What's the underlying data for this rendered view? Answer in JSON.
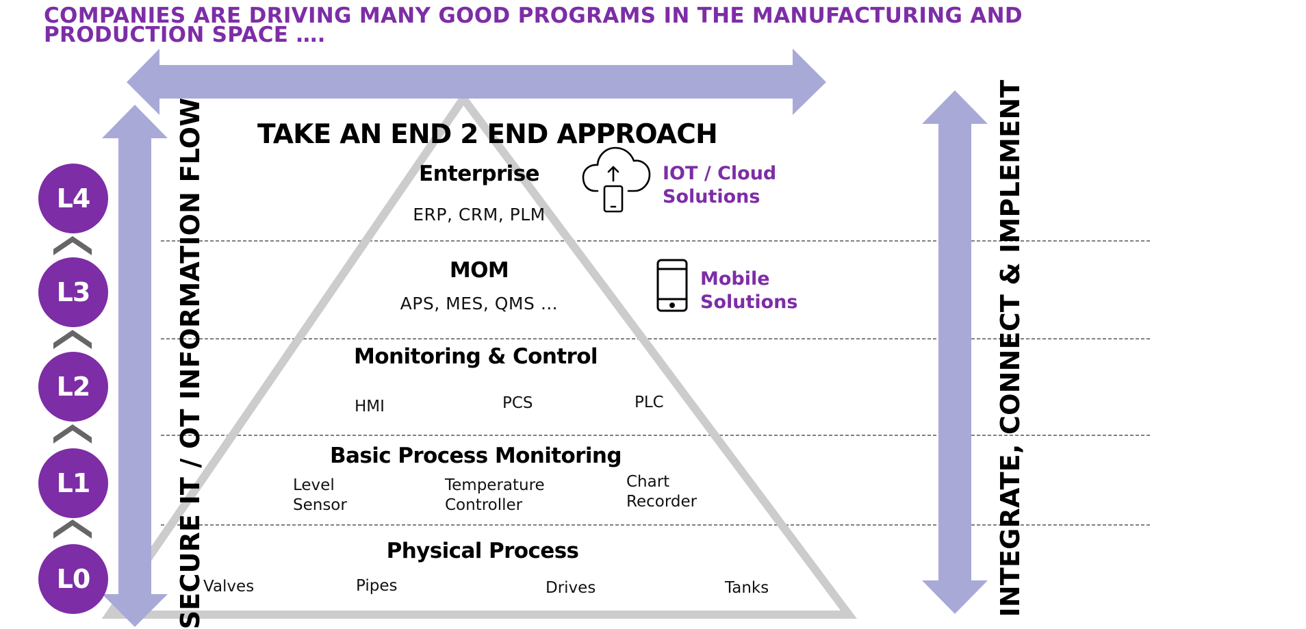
{
  "heading": "COMPANIES ARE DRIVING MANY GOOD PROGRAMS IN THE MANUFACTURING AND PRODUCTION SPACE ….",
  "approach_title": "TAKE AN END 2 END APPROACH",
  "left_flow_label": "SECURE IT / OT INFORMATION FLOW",
  "right_flow_label": "INTEGRATE, CONNECT & IMPLEMENT",
  "badges": [
    "L4",
    "L3",
    "L2",
    "L1",
    "L0"
  ],
  "levels": {
    "enterprise": {
      "title": "Enterprise",
      "subtitle": "ERP, CRM, PLM"
    },
    "mom": {
      "title": "MOM",
      "subtitle": "APS, MES, QMS …"
    },
    "monitoring": {
      "title": "Monitoring & Control",
      "items": [
        "HMI",
        "PCS",
        "PLC"
      ]
    },
    "basic": {
      "title": "Basic Process Monitoring",
      "items": [
        "Level\nSensor",
        "Temperature\nController",
        "Chart\nRecorder"
      ]
    },
    "physical": {
      "title": "Physical Process",
      "items": [
        "Valves",
        "Pipes",
        "Drives",
        "Tanks"
      ]
    }
  },
  "solutions": {
    "iot": "IOT / Cloud\nSolutions",
    "mobile": "Mobile\nSolutions"
  },
  "icons": [
    "cloud-upload-phone-icon",
    "smartphone-icon",
    "chevron-up-icon"
  ],
  "colors": {
    "accent": "#7d2da6",
    "arrow": "#a9a9d8",
    "triangle": "#cccccc",
    "divider": "#555555"
  }
}
